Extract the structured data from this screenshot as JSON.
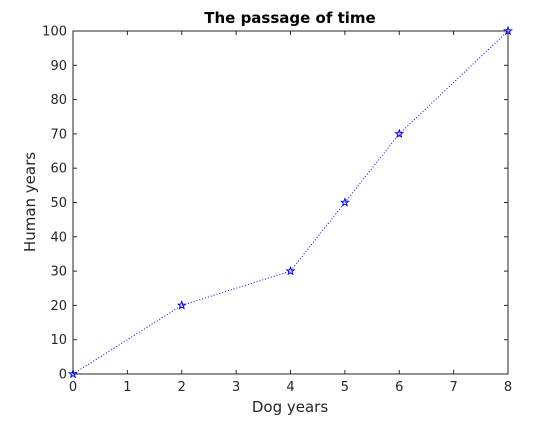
{
  "chart_data": {
    "type": "line",
    "title": "The passage of time",
    "xlabel": "Dog years",
    "ylabel": "Human years",
    "xlim": [
      0,
      8
    ],
    "ylim": [
      0,
      100
    ],
    "xticks": [
      0,
      1,
      2,
      3,
      4,
      5,
      6,
      7,
      8
    ],
    "yticks": [
      0,
      10,
      20,
      30,
      40,
      50,
      60,
      70,
      80,
      90,
      100
    ],
    "grid": false,
    "series": [
      {
        "x": [
          0,
          2,
          4,
          5,
          6,
          8
        ],
        "y": [
          0,
          20,
          30,
          50,
          70,
          100
        ],
        "color": "#0000ff",
        "line_style": "dotted",
        "marker": "pentagram"
      }
    ]
  }
}
